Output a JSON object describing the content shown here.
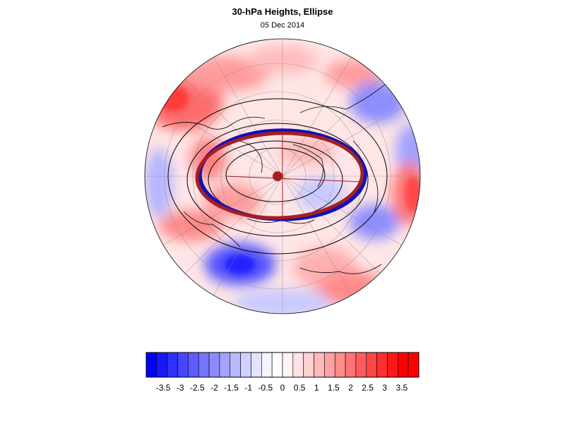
{
  "header": {
    "title": "30-hPa Heights, Ellipse",
    "date": "05 Dec 2014"
  },
  "colors": {
    "ellipse_blue": "#1010b8",
    "ellipse_red": "#a31f24",
    "center_dot": "#a31f24",
    "contour": "#000000"
  },
  "colorbar": {
    "levels": [
      -3.75,
      -3.5,
      -3.25,
      -3,
      -2.75,
      -2.5,
      -2.25,
      -2,
      -1.75,
      -1.5,
      -1.25,
      -1,
      -0.75,
      -0.5,
      -0.25,
      0,
      0.25,
      0.5,
      0.75,
      1,
      1.25,
      1.5,
      1.75,
      2,
      2.25,
      2.5,
      2.75,
      3,
      3.25,
      3.5,
      3.75
    ],
    "colors": [
      "#0000ff",
      "#1818ff",
      "#2f2fff",
      "#4646ff",
      "#5d5dff",
      "#7474ff",
      "#8b8bff",
      "#a2a2ff",
      "#b9b9ff",
      "#d0d0ff",
      "#e3e3ff",
      "#f3f3ff",
      "#ffffff",
      "#fff3f3",
      "#ffe3e3",
      "#ffd0d0",
      "#ffb9b9",
      "#ffa2a2",
      "#ff8b8b",
      "#ff7474",
      "#ff5d5d",
      "#ff4646",
      "#ff2f2f",
      "#ff1818",
      "#ff0000",
      "#ff0000"
    ],
    "tick_labels": [
      "-3.5",
      "-3",
      "-2.5",
      "-2",
      "-1.5",
      "-1",
      "-0.5",
      "0",
      "0.5",
      "1",
      "1.5",
      "2",
      "2.5",
      "3",
      "3.5"
    ]
  }
}
